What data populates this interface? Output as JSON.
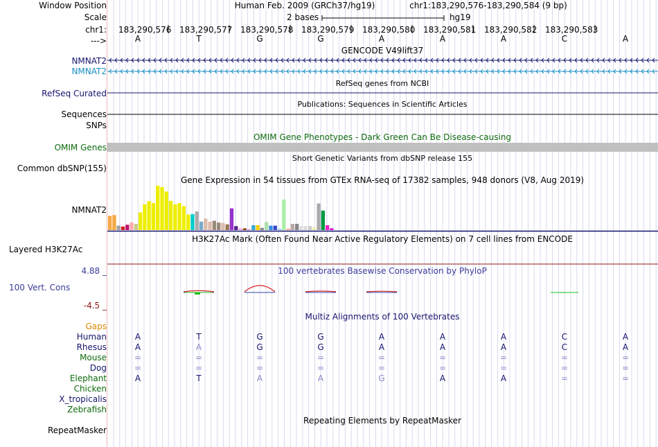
{
  "header": {
    "assembly": "Human Feb. 2009 (GRCh37/hg19)",
    "position": "chr1:183,290,576-183,290,584 (9 bp)",
    "scale_text": "2 bases",
    "scale_assembly": "hg19"
  },
  "labels": {
    "window_position": "Window Position",
    "scale": "Scale",
    "chr": "chr1:",
    "strand": "--->",
    "nmnat2_a": "NMNAT2",
    "nmnat2_b": "NMNAT2",
    "refseq": "RefSeq Curated",
    "sequences": "Sequences",
    "snps": "SNPs",
    "omim": "OMIM Genes",
    "dbsnp": "Common dbSNP(155)",
    "gtex_gene": "NMNAT2",
    "h3k27ac": "Layered H3K27Ac",
    "cons_max": "4.88 _",
    "cons": "100 Vert. Cons",
    "cons_min": "-4.5 _",
    "gaps": "Gaps",
    "repeatmasker": "RepeatMasker"
  },
  "colors": {
    "nmnat2_a": "#14146e",
    "nmnat2_b": "#1a8fc4",
    "omim_label": "#0d6b0d",
    "omim_bar": "#c0c0c0",
    "cons_label": "#3a3a9a",
    "gaps": "#d88a00",
    "h3k27ac_line": "#8b1a1a",
    "grid": "#d9d9ef"
  },
  "positions": {
    "coordinates": [
      "183,290,576",
      "183,290,577",
      "183,290,578",
      "183,290,579",
      "183,290,580",
      "183,290,581",
      "183,290,582",
      "183,290,583"
    ],
    "bases": [
      "A",
      "T",
      "G",
      "G",
      "A",
      "A",
      "A",
      "C",
      "A"
    ]
  },
  "tracks": {
    "gencode_title": "GENCODE V49lift37",
    "refseq_title": "RefSeq genes from NCBI",
    "pubs_title": "Publications: Sequences in Scientific Articles",
    "omim_title": "OMIM Gene Phenotypes - Dark Green Can Be Disease-causing",
    "dbsnp_title": "Short Genetic Variants from dbSNP release 155",
    "gtex_title": "Gene Expression in 54 tissues from GTEx RNA-seq of 17382 samples, 948 donors (V8, Aug 2019)",
    "h3k27ac_title": "H3K27Ac Mark (Often Found Near Active Regulatory Elements) on 7 cell lines from ENCODE",
    "phylop_title": "100 vertebrates Basewise Conservation by PhyloP",
    "multiz_title": "Multiz Alignments of 100 Vertebrates",
    "repeat_title": "Repeating Elements by RepeatMasker"
  },
  "gtex": {
    "values": [
      0.32,
      0.34,
      0.1,
      0.08,
      0.12,
      0.17,
      0.14,
      0.4,
      0.58,
      0.65,
      0.61,
      1.0,
      0.97,
      0.87,
      0.66,
      0.58,
      0.61,
      0.54,
      0.35,
      0.36,
      0.42,
      0.19,
      0.26,
      0.19,
      0.21,
      0.17,
      0.16,
      0.13,
      0.49,
      0.09,
      0.04,
      0.04,
      0.02,
      0.11,
      0.11,
      0.05,
      0.18,
      0.1,
      0.1,
      0.03,
      0.69,
      0.03,
      0.14,
      0.14,
      0.09,
      0.09,
      0.09,
      0.06,
      0.6,
      0.44,
      0.11,
      0.04,
      0.0,
      0.0
    ],
    "colors": [
      "#f5a742",
      "#f5a742",
      "#a0a0a0",
      "#cc2020",
      "#c01070",
      "#ffaaaa",
      "#cccc88",
      "#eeee00",
      "#eeee00",
      "#eeee00",
      "#eeee00",
      "#eeee00",
      "#eeee00",
      "#eeee00",
      "#eeee00",
      "#eeee00",
      "#eeee00",
      "#eeee00",
      "#eeee00",
      "#00cccc",
      "#aaaaaa",
      "#77aacc",
      "#ddbbaa",
      "#ddbbaa",
      "#998877",
      "#998877",
      "#ddbbaa",
      "#997755",
      "#9933cc",
      "#552288",
      "#ffaadd",
      "#8b4513",
      "#dd99dd",
      "#33aacc",
      "#ffcc00",
      "#888888",
      "#aaddaa",
      "#3388dd",
      "#3344cc",
      "#99ccff",
      "#aaeeaa",
      "#ffaa88",
      "#bbaaaa",
      "#888888",
      "#dddddd",
      "#dddddd",
      "#cccccc",
      "#eeeeaa",
      "#aaaaaa",
      "#009944",
      "#ee22cc",
      "#dd00dd",
      "#ffffff",
      "#ffffff"
    ]
  },
  "phylop": {
    "values": [
      0.0,
      0.08,
      0.45,
      0.05,
      0.04,
      0.0,
      0.0,
      0.0,
      0.0
    ],
    "neg": [
      0.0,
      0.15,
      0.0,
      0.0,
      0.0,
      0.0,
      0.0,
      0.03,
      0.0
    ]
  },
  "multiz": {
    "species": [
      {
        "name": "Human",
        "color": "#14146e",
        "bases": [
          "A",
          "T",
          "G",
          "G",
          "A",
          "A",
          "A",
          "C",
          "A"
        ],
        "dim": [
          false,
          false,
          false,
          false,
          false,
          false,
          false,
          false,
          false
        ]
      },
      {
        "name": "Rhesus",
        "color": "#14146e",
        "bases": [
          "A",
          "A",
          "G",
          "G",
          "A",
          "A",
          "A",
          "C",
          "A"
        ],
        "dim": [
          false,
          true,
          false,
          false,
          false,
          false,
          false,
          false,
          false
        ]
      },
      {
        "name": "Mouse",
        "color": "#0d6b0d",
        "bases": [
          "=",
          "=",
          "=",
          "=",
          "=",
          "=",
          "=",
          "=",
          "="
        ],
        "dim": [
          true,
          true,
          true,
          true,
          true,
          true,
          true,
          true,
          true
        ]
      },
      {
        "name": "Dog",
        "color": "#14146e",
        "bases": [
          "=",
          "=",
          "=",
          "=",
          "=",
          "=",
          "=",
          "=",
          "="
        ],
        "dim": [
          true,
          true,
          true,
          true,
          true,
          true,
          true,
          true,
          true
        ]
      },
      {
        "name": "Elephant",
        "color": "#0d6b0d",
        "bases": [
          "A",
          "T",
          "A",
          "A",
          "G",
          "A",
          "A",
          "=",
          "="
        ],
        "dim": [
          false,
          false,
          true,
          true,
          true,
          false,
          false,
          true,
          true
        ]
      },
      {
        "name": "Chicken",
        "color": "#0d6b0d",
        "bases": [],
        "dim": []
      },
      {
        "name": "X_tropicalis",
        "color": "#14146e",
        "bases": [],
        "dim": []
      },
      {
        "name": "Zebrafish",
        "color": "#0d6b0d",
        "bases": [],
        "dim": []
      }
    ]
  }
}
